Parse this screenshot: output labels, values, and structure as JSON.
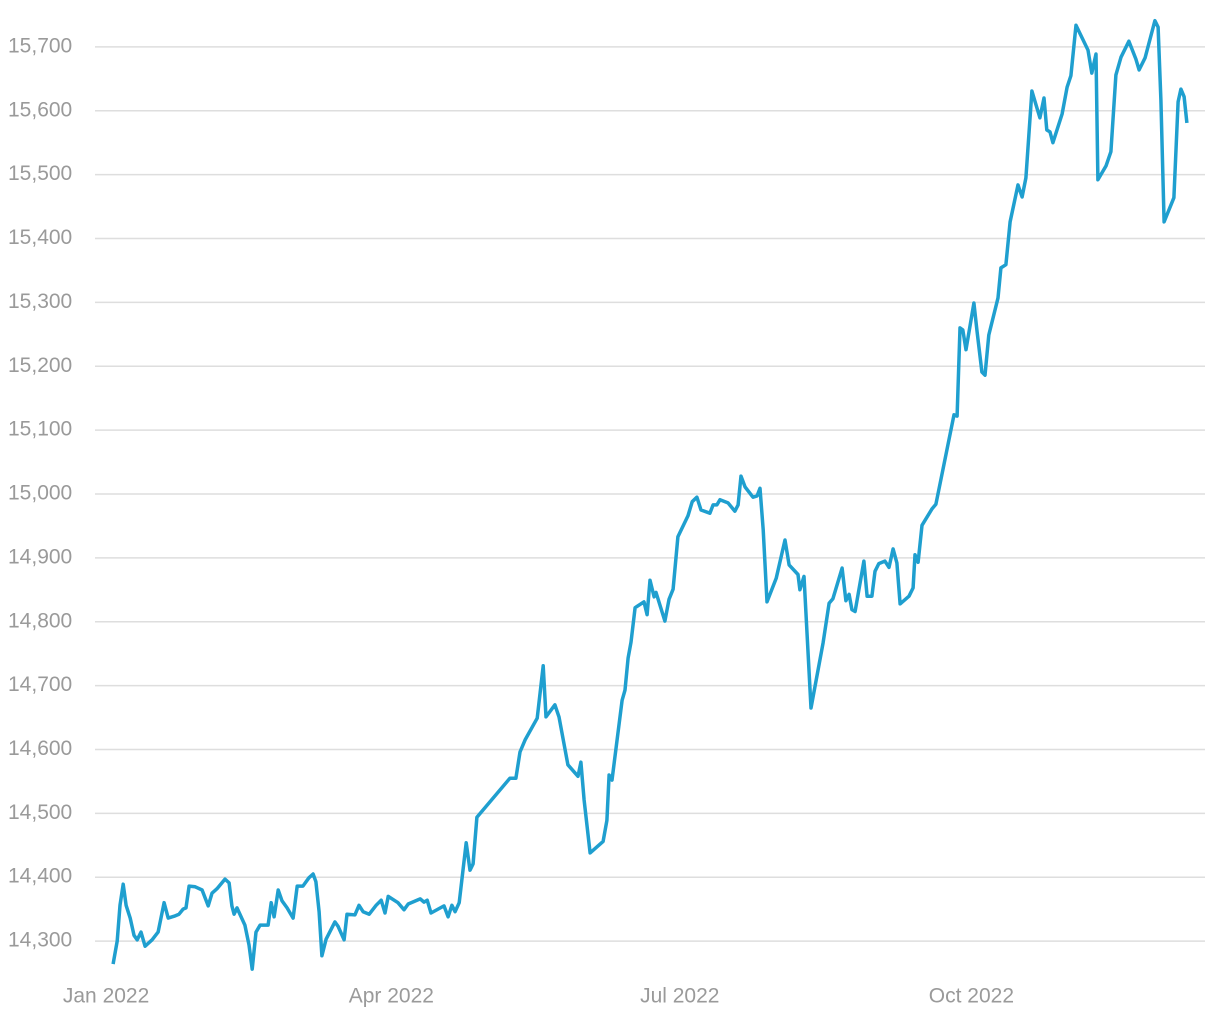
{
  "chart_data": {
    "type": "line",
    "color": "#1f9fcf",
    "grid": true,
    "xlim": [
      -3.5,
      346.7
    ],
    "ylim": [
      14250,
      15750
    ],
    "xticks": [
      {
        "value": 0,
        "label": "Jan 2022"
      },
      {
        "value": 90,
        "label": "Apr 2022"
      },
      {
        "value": 181,
        "label": "Jul 2022"
      },
      {
        "value": 273,
        "label": "Oct 2022"
      }
    ],
    "yticks": [
      {
        "value": 14300,
        "label": "14,300"
      },
      {
        "value": 14400,
        "label": "14,400"
      },
      {
        "value": 14500,
        "label": "14,500"
      },
      {
        "value": 14600,
        "label": "14,600"
      },
      {
        "value": 14700,
        "label": "14,700"
      },
      {
        "value": 14800,
        "label": "14,800"
      },
      {
        "value": 14900,
        "label": "14,900"
      },
      {
        "value": 15000,
        "label": "15,000"
      },
      {
        "value": 15100,
        "label": "15,100"
      },
      {
        "value": 15200,
        "label": "15,200"
      },
      {
        "value": 15300,
        "label": "15,300"
      },
      {
        "value": 15400,
        "label": "15,400"
      },
      {
        "value": 15500,
        "label": "15,500"
      },
      {
        "value": 15600,
        "label": "15,600"
      },
      {
        "value": 15700,
        "label": "15,700"
      }
    ],
    "x": [
      2.2,
      3.5,
      4.4,
      5.4,
      6.3,
      7.6,
      8.8,
      9.8,
      11.0,
      12.3,
      14.5,
      16.4,
      18.3,
      19.6,
      21.5,
      23.0,
      24.3,
      25.2,
      26.2,
      28.1,
      30.3,
      32.2,
      33.4,
      35.0,
      37.5,
      38.8,
      39.7,
      40.4,
      41.3,
      43.8,
      45.1,
      46.1,
      47.3,
      48.6,
      51.1,
      52.1,
      53.0,
      54.3,
      55.5,
      57.1,
      59.0,
      60.3,
      62.1,
      64.0,
      65.3,
      66.2,
      67.2,
      68.1,
      69.4,
      72.2,
      73.2,
      75.1,
      76.0,
      78.5,
      79.8,
      81.1,
      83.0,
      85.2,
      86.8,
      88.0,
      89.0,
      92.1,
      94.0,
      95.3,
      99.1,
      100.3,
      101.3,
      102.5,
      106.6,
      107.9,
      109.1,
      110.1,
      111.4,
      113.6,
      114.8,
      115.8,
      117.0,
      127.4,
      129.3,
      130.6,
      132.2,
      136.0,
      137.9,
      138.8,
      141.6,
      142.9,
      145.7,
      148.9,
      149.8,
      150.8,
      152.7,
      156.8,
      158.0,
      158.7,
      159.6,
      162.8,
      163.7,
      164.7,
      165.6,
      166.9,
      169.7,
      170.7,
      171.6,
      172.9,
      173.5,
      176.3,
      177.6,
      178.9,
      180.4,
      183.6,
      184.9,
      186.4,
      187.7,
      190.5,
      191.5,
      192.7,
      193.7,
      196.2,
      198.4,
      199.4,
      200.3,
      201.6,
      204.1,
      205.4,
      206.3,
      207.3,
      208.5,
      211.4,
      214.2,
      215.5,
      218.3,
      218.9,
      220.2,
      222.4,
      226.2,
      228.1,
      229.3,
      232.2,
      233.4,
      234.4,
      235.3,
      236.3,
      239.1,
      240.1,
      241.6,
      242.6,
      243.8,
      245.7,
      247.0,
      248.3,
      249.5,
      250.5,
      253.3,
      254.6,
      255.2,
      256.2,
      257.4,
      260.6,
      261.8,
      264.0,
      267.5,
      268.5,
      269.4,
      270.3,
      271.3,
      273.8,
      274.8,
      276.3,
      277.3,
      278.5,
      281.4,
      282.3,
      283.9,
      285.2,
      287.7,
      289.0,
      290.2,
      292.1,
      293.4,
      294.6,
      295.9,
      296.8,
      297.8,
      298.7,
      301.6,
      303.2,
      304.4,
      306.0,
      309.8,
      311.0,
      312.3,
      312.9,
      315.5,
      317.0,
      318.6,
      320.2,
      322.7,
      324.9,
      325.9,
      327.8,
      330.9,
      331.9,
      332.8,
      333.8,
      336.9,
      338.2,
      339.1,
      340.1,
      341.0
    ],
    "values": [
      14264,
      14300,
      14356,
      14389,
      14356,
      14336,
      14309,
      14302,
      14314,
      14292,
      14302,
      14314,
      14360,
      14336,
      14339,
      14342,
      14350,
      14352,
      14386,
      14385,
      14380,
      14355,
      14375,
      14382,
      14397,
      14391,
      14355,
      14342,
      14352,
      14325,
      14294,
      14256,
      14314,
      14325,
      14325,
      14360,
      14338,
      14380,
      14363,
      14352,
      14336,
      14386,
      14386,
      14399,
      14405,
      14393,
      14346,
      14277,
      14303,
      14330,
      14323,
      14302,
      14342,
      14341,
      14356,
      14346,
      14342,
      14356,
      14364,
      14344,
      14370,
      14360,
      14349,
      14358,
      14366,
      14361,
      14364,
      14344,
      14355,
      14338,
      14356,
      14346,
      14360,
      14454,
      14411,
      14421,
      14494,
      14555,
      14555,
      14596,
      14615,
      14649,
      14731,
      14651,
      14670,
      14651,
      14576,
      14558,
      14580,
      14521,
      14438,
      14456,
      14489,
      14560,
      14552,
      14677,
      14693,
      14743,
      14768,
      14822,
      14831,
      14811,
      14865,
      14839,
      14846,
      14801,
      14835,
      14851,
      14933,
      14966,
      14988,
      14995,
      14975,
      14970,
      14983,
      14983,
      14991,
      14986,
      14973,
      14983,
      15028,
      15011,
      14995,
      14997,
      15009,
      14944,
      14831,
      14868,
      14928,
      14889,
      14874,
      14850,
      14871,
      14665,
      14767,
      14829,
      14836,
      14884,
      14833,
      14843,
      14819,
      14816,
      14895,
      14840,
      14840,
      14879,
      14891,
      14895,
      14885,
      14914,
      14892,
      14828,
      14840,
      14853,
      14905,
      14893,
      14951,
      14977,
      14984,
      15038,
      15124,
      15122,
      15260,
      15257,
      15226,
      15299,
      15254,
      15191,
      15186,
      15249,
      15307,
      15354,
      15359,
      15426,
      15484,
      15465,
      15495,
      15631,
      15609,
      15589,
      15620,
      15570,
      15567,
      15550,
      15595,
      15637,
      15655,
      15734,
      15695,
      15659,
      15689,
      15492,
      15514,
      15536,
      15656,
      15684,
      15709,
      15681,
      15664,
      15683,
      15741,
      15731,
      15617,
      15426,
      15464,
      15614,
      15634,
      15622,
      15581
    ]
  }
}
